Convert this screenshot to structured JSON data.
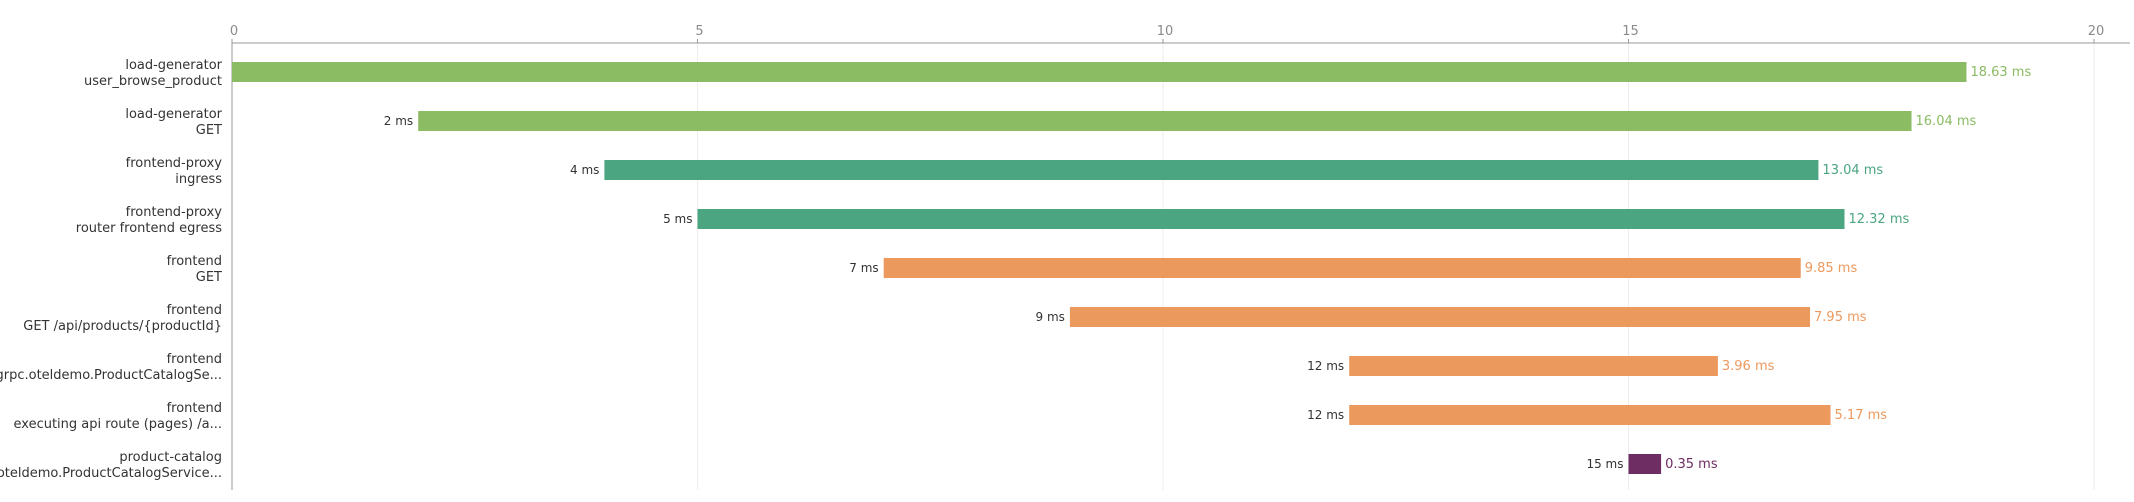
{
  "chart_data": {
    "type": "bar",
    "orientation": "horizontal",
    "xlim": [
      0,
      20
    ],
    "x_ticks": [
      "0",
      "5",
      "10",
      "15",
      "20"
    ],
    "grid": true,
    "legend": "none",
    "unit": "ms",
    "rows": [
      {
        "service": "load-generator",
        "operation": "user_browse_product",
        "start": 0,
        "duration": 18.63,
        "start_label": "",
        "duration_label": "18.63 ms",
        "color": "#8bbb63"
      },
      {
        "service": "load-generator",
        "operation": "GET",
        "start": 2,
        "duration": 16.04,
        "start_label": "2 ms",
        "duration_label": "16.04 ms",
        "color": "#8bbb63"
      },
      {
        "service": "frontend-proxy",
        "operation": "ingress",
        "start": 4,
        "duration": 13.04,
        "start_label": "4 ms",
        "duration_label": "13.04 ms",
        "color": "#4aa580"
      },
      {
        "service": "frontend-proxy",
        "operation": "router frontend egress",
        "start": 5,
        "duration": 12.32,
        "start_label": "5 ms",
        "duration_label": "12.32 ms",
        "color": "#4aa580"
      },
      {
        "service": "frontend",
        "operation": "GET",
        "start": 7,
        "duration": 9.85,
        "start_label": "7 ms",
        "duration_label": "9.85 ms",
        "color": "#ec995e"
      },
      {
        "service": "frontend",
        "operation": "GET /api/products/{productId}",
        "start": 9,
        "duration": 7.95,
        "start_label": "9 ms",
        "duration_label": "7.95 ms",
        "color": "#ec995e"
      },
      {
        "service": "frontend",
        "operation": "grpc.oteldemo.ProductCatalogSe...",
        "start": 12,
        "duration": 3.96,
        "start_label": "12 ms",
        "duration_label": "3.96 ms",
        "color": "#ec995e"
      },
      {
        "service": "frontend",
        "operation": "executing api route (pages) /a...",
        "start": 12,
        "duration": 5.17,
        "start_label": "12 ms",
        "duration_label": "5.17 ms",
        "color": "#ec995e"
      },
      {
        "service": "product-catalog",
        "operation": "oteldemo.ProductCatalogService...",
        "start": 15,
        "duration": 0.35,
        "start_label": "15 ms",
        "duration_label": "0.35 ms",
        "color": "#6e2d63"
      }
    ]
  }
}
